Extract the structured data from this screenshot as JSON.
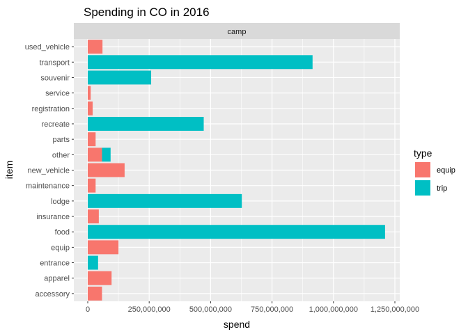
{
  "chart_data": {
    "type": "bar",
    "orientation": "horizontal",
    "stacked": true,
    "title": "Spending in CO in 2016",
    "facet": "camp",
    "xlabel": "spend",
    "ylabel": "item",
    "xlim": [
      0,
      1250000000
    ],
    "xticks": [
      "0",
      "250,000,000",
      "500,000,000",
      "750,000,000",
      "1,000,000,000",
      "1,250,000,000"
    ],
    "grid": true,
    "legend_title": "type",
    "legend_position": "right",
    "categories": [
      "used_vehicle",
      "transport",
      "souvenir",
      "service",
      "registration",
      "recreate",
      "parts",
      "other",
      "new_vehicle",
      "maintenance",
      "lodge",
      "insurance",
      "food",
      "equip",
      "entrance",
      "apparel",
      "accessory"
    ],
    "series": [
      {
        "name": "equip",
        "color": "#F8766D",
        "values": [
          60000000,
          0,
          0,
          12000000,
          20000000,
          0,
          32000000,
          58000000,
          150000000,
          32000000,
          0,
          45000000,
          0,
          125000000,
          0,
          97000000,
          58000000
        ]
      },
      {
        "name": "trip",
        "color": "#00BFC4",
        "values": [
          0,
          915000000,
          258000000,
          0,
          0,
          472000000,
          0,
          35000000,
          0,
          0,
          627000000,
          0,
          1210000000,
          0,
          42000000,
          0,
          0
        ]
      }
    ]
  }
}
